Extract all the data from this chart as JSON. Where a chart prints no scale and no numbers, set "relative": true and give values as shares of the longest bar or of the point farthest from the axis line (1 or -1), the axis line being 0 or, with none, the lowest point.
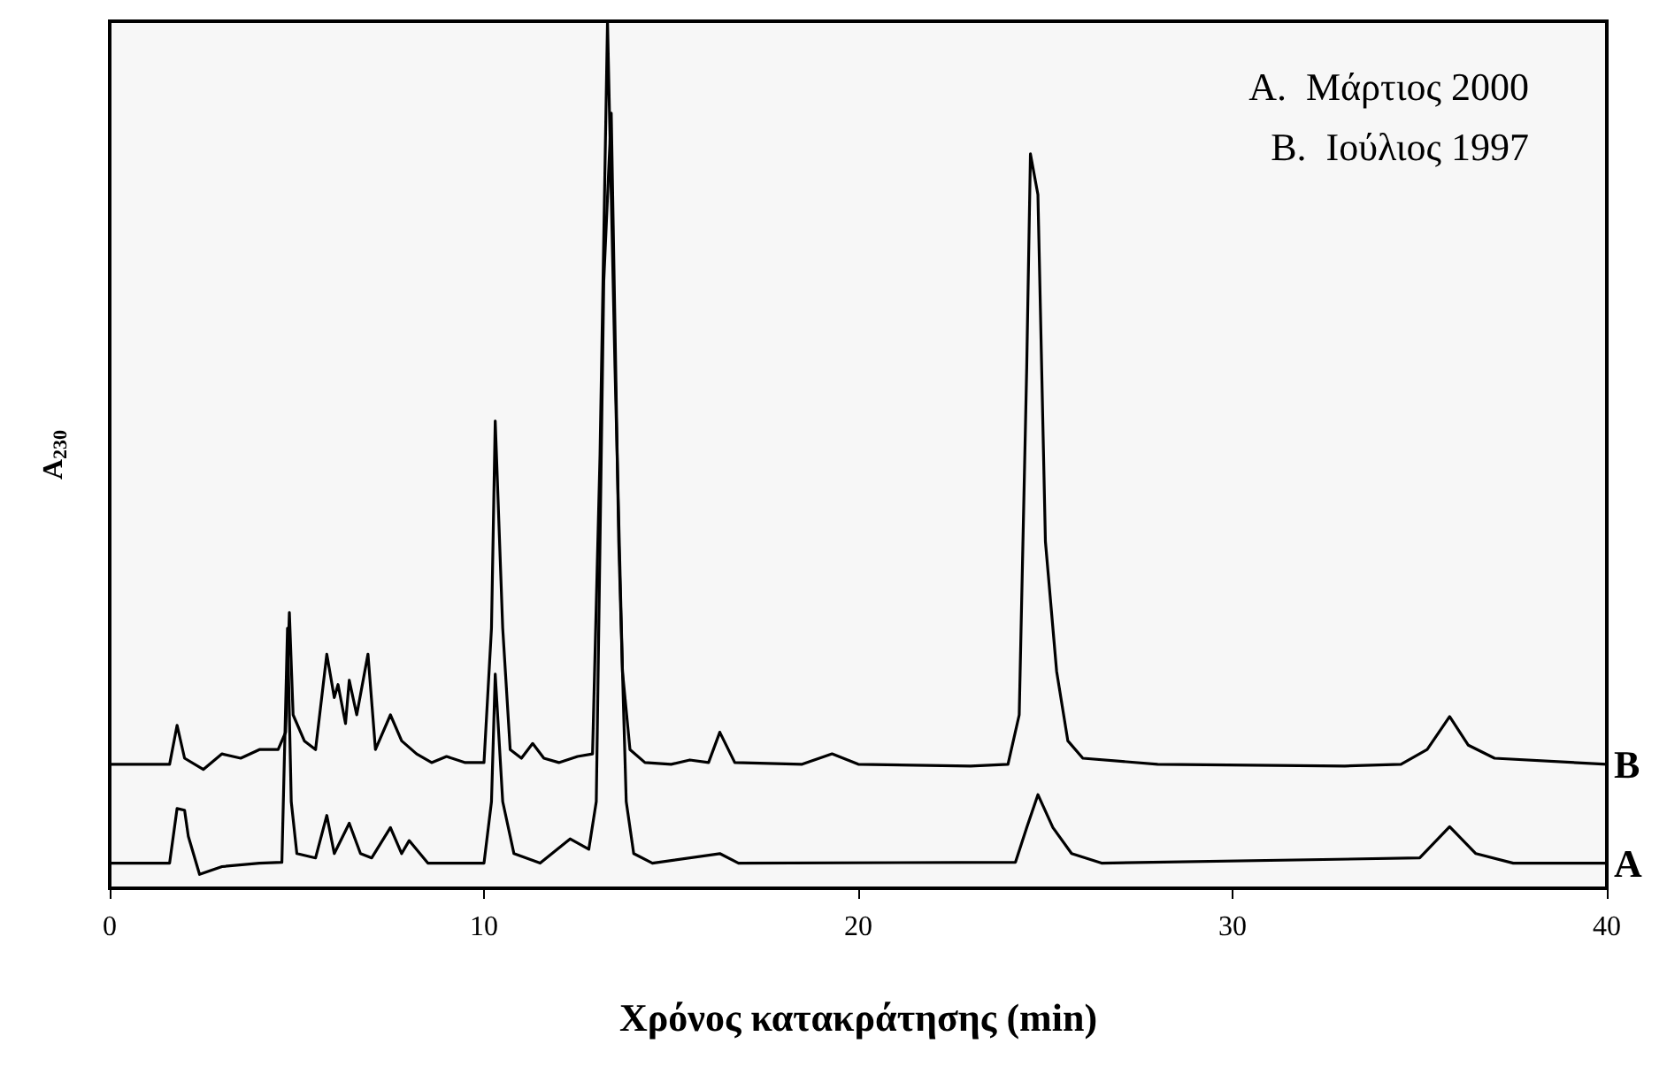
{
  "chart_data": {
    "type": "line",
    "relative": true,
    "xlabel": "Χρόνος κατακράτησης (min)",
    "ylabel": "A$_{230}$",
    "xlim": [
      0,
      40
    ],
    "xticks": [
      0,
      10,
      20,
      30,
      40
    ],
    "tick_labels": "x",
    "grid": false,
    "legend": false,
    "marker": "none",
    "line_style": "solid",
    "annotations": [
      "A.  Μάρτιος 2000",
      "B.  Ιούλιος 1997"
    ],
    "series": [
      {
        "name": "B",
        "color": "#000000",
        "x": [
          0,
          1.6,
          1.8,
          2.0,
          2.5,
          3.0,
          3.5,
          4.0,
          4.5,
          4.7,
          4.8,
          4.9,
          5.2,
          5.5,
          5.8,
          6.0,
          6.1,
          6.3,
          6.4,
          6.6,
          6.9,
          7.1,
          7.5,
          7.8,
          8.2,
          8.6,
          9.0,
          9.5,
          10.0,
          10.2,
          10.3,
          10.5,
          10.7,
          11.0,
          11.3,
          11.6,
          12.0,
          12.5,
          12.9,
          13.1,
          13.3,
          13.5,
          13.7,
          13.9,
          14.3,
          15.0,
          15.5,
          16.0,
          16.3,
          16.7,
          18.5,
          19.3,
          20.0,
          23.0,
          24.0,
          24.3,
          24.5,
          24.6,
          24.8,
          25.0,
          25.3,
          25.6,
          26.0,
          28.0,
          33.0,
          34.5,
          35.2,
          35.8,
          36.3,
          37.0,
          40.0
        ],
        "values": [
          0.143,
          0.143,
          0.188,
          0.15,
          0.137,
          0.155,
          0.15,
          0.16,
          0.16,
          0.18,
          0.318,
          0.2,
          0.17,
          0.16,
          0.27,
          0.22,
          0.235,
          0.19,
          0.24,
          0.2,
          0.27,
          0.16,
          0.2,
          0.17,
          0.155,
          0.145,
          0.152,
          0.145,
          0.145,
          0.3,
          0.539,
          0.3,
          0.16,
          0.15,
          0.167,
          0.15,
          0.145,
          0.152,
          0.155,
          0.5,
          1.0,
          0.6,
          0.25,
          0.16,
          0.145,
          0.143,
          0.148,
          0.145,
          0.18,
          0.145,
          0.143,
          0.155,
          0.143,
          0.141,
          0.143,
          0.2,
          0.6,
          0.847,
          0.8,
          0.4,
          0.25,
          0.17,
          0.15,
          0.143,
          0.141,
          0.143,
          0.16,
          0.198,
          0.165,
          0.15,
          0.143
        ]
      },
      {
        "name": "A",
        "color": "#000000",
        "x": [
          0,
          1.6,
          1.8,
          2.0,
          2.1,
          2.4,
          3.0,
          4.0,
          4.6,
          4.75,
          4.85,
          5.0,
          5.5,
          5.8,
          6.0,
          6.4,
          6.7,
          7.0,
          7.5,
          7.8,
          8.0,
          8.5,
          10.0,
          10.2,
          10.3,
          10.5,
          10.8,
          11.5,
          12.3,
          12.8,
          13.0,
          13.2,
          13.4,
          13.6,
          13.8,
          14.0,
          14.5,
          16.3,
          16.8,
          24.2,
          24.5,
          24.8,
          25.2,
          25.7,
          26.5,
          35.0,
          35.8,
          36.5,
          37.5,
          40.0
        ],
        "values": [
          0.029,
          0.029,
          0.092,
          0.09,
          0.06,
          0.016,
          0.025,
          0.029,
          0.03,
          0.3,
          0.1,
          0.04,
          0.035,
          0.084,
          0.04,
          0.075,
          0.04,
          0.035,
          0.07,
          0.04,
          0.055,
          0.029,
          0.029,
          0.1,
          0.247,
          0.1,
          0.04,
          0.029,
          0.057,
          0.045,
          0.1,
          0.7,
          0.894,
          0.4,
          0.1,
          0.04,
          0.029,
          0.04,
          0.029,
          0.03,
          0.07,
          0.108,
          0.07,
          0.04,
          0.029,
          0.035,
          0.071,
          0.04,
          0.029,
          0.029
        ]
      }
    ]
  }
}
